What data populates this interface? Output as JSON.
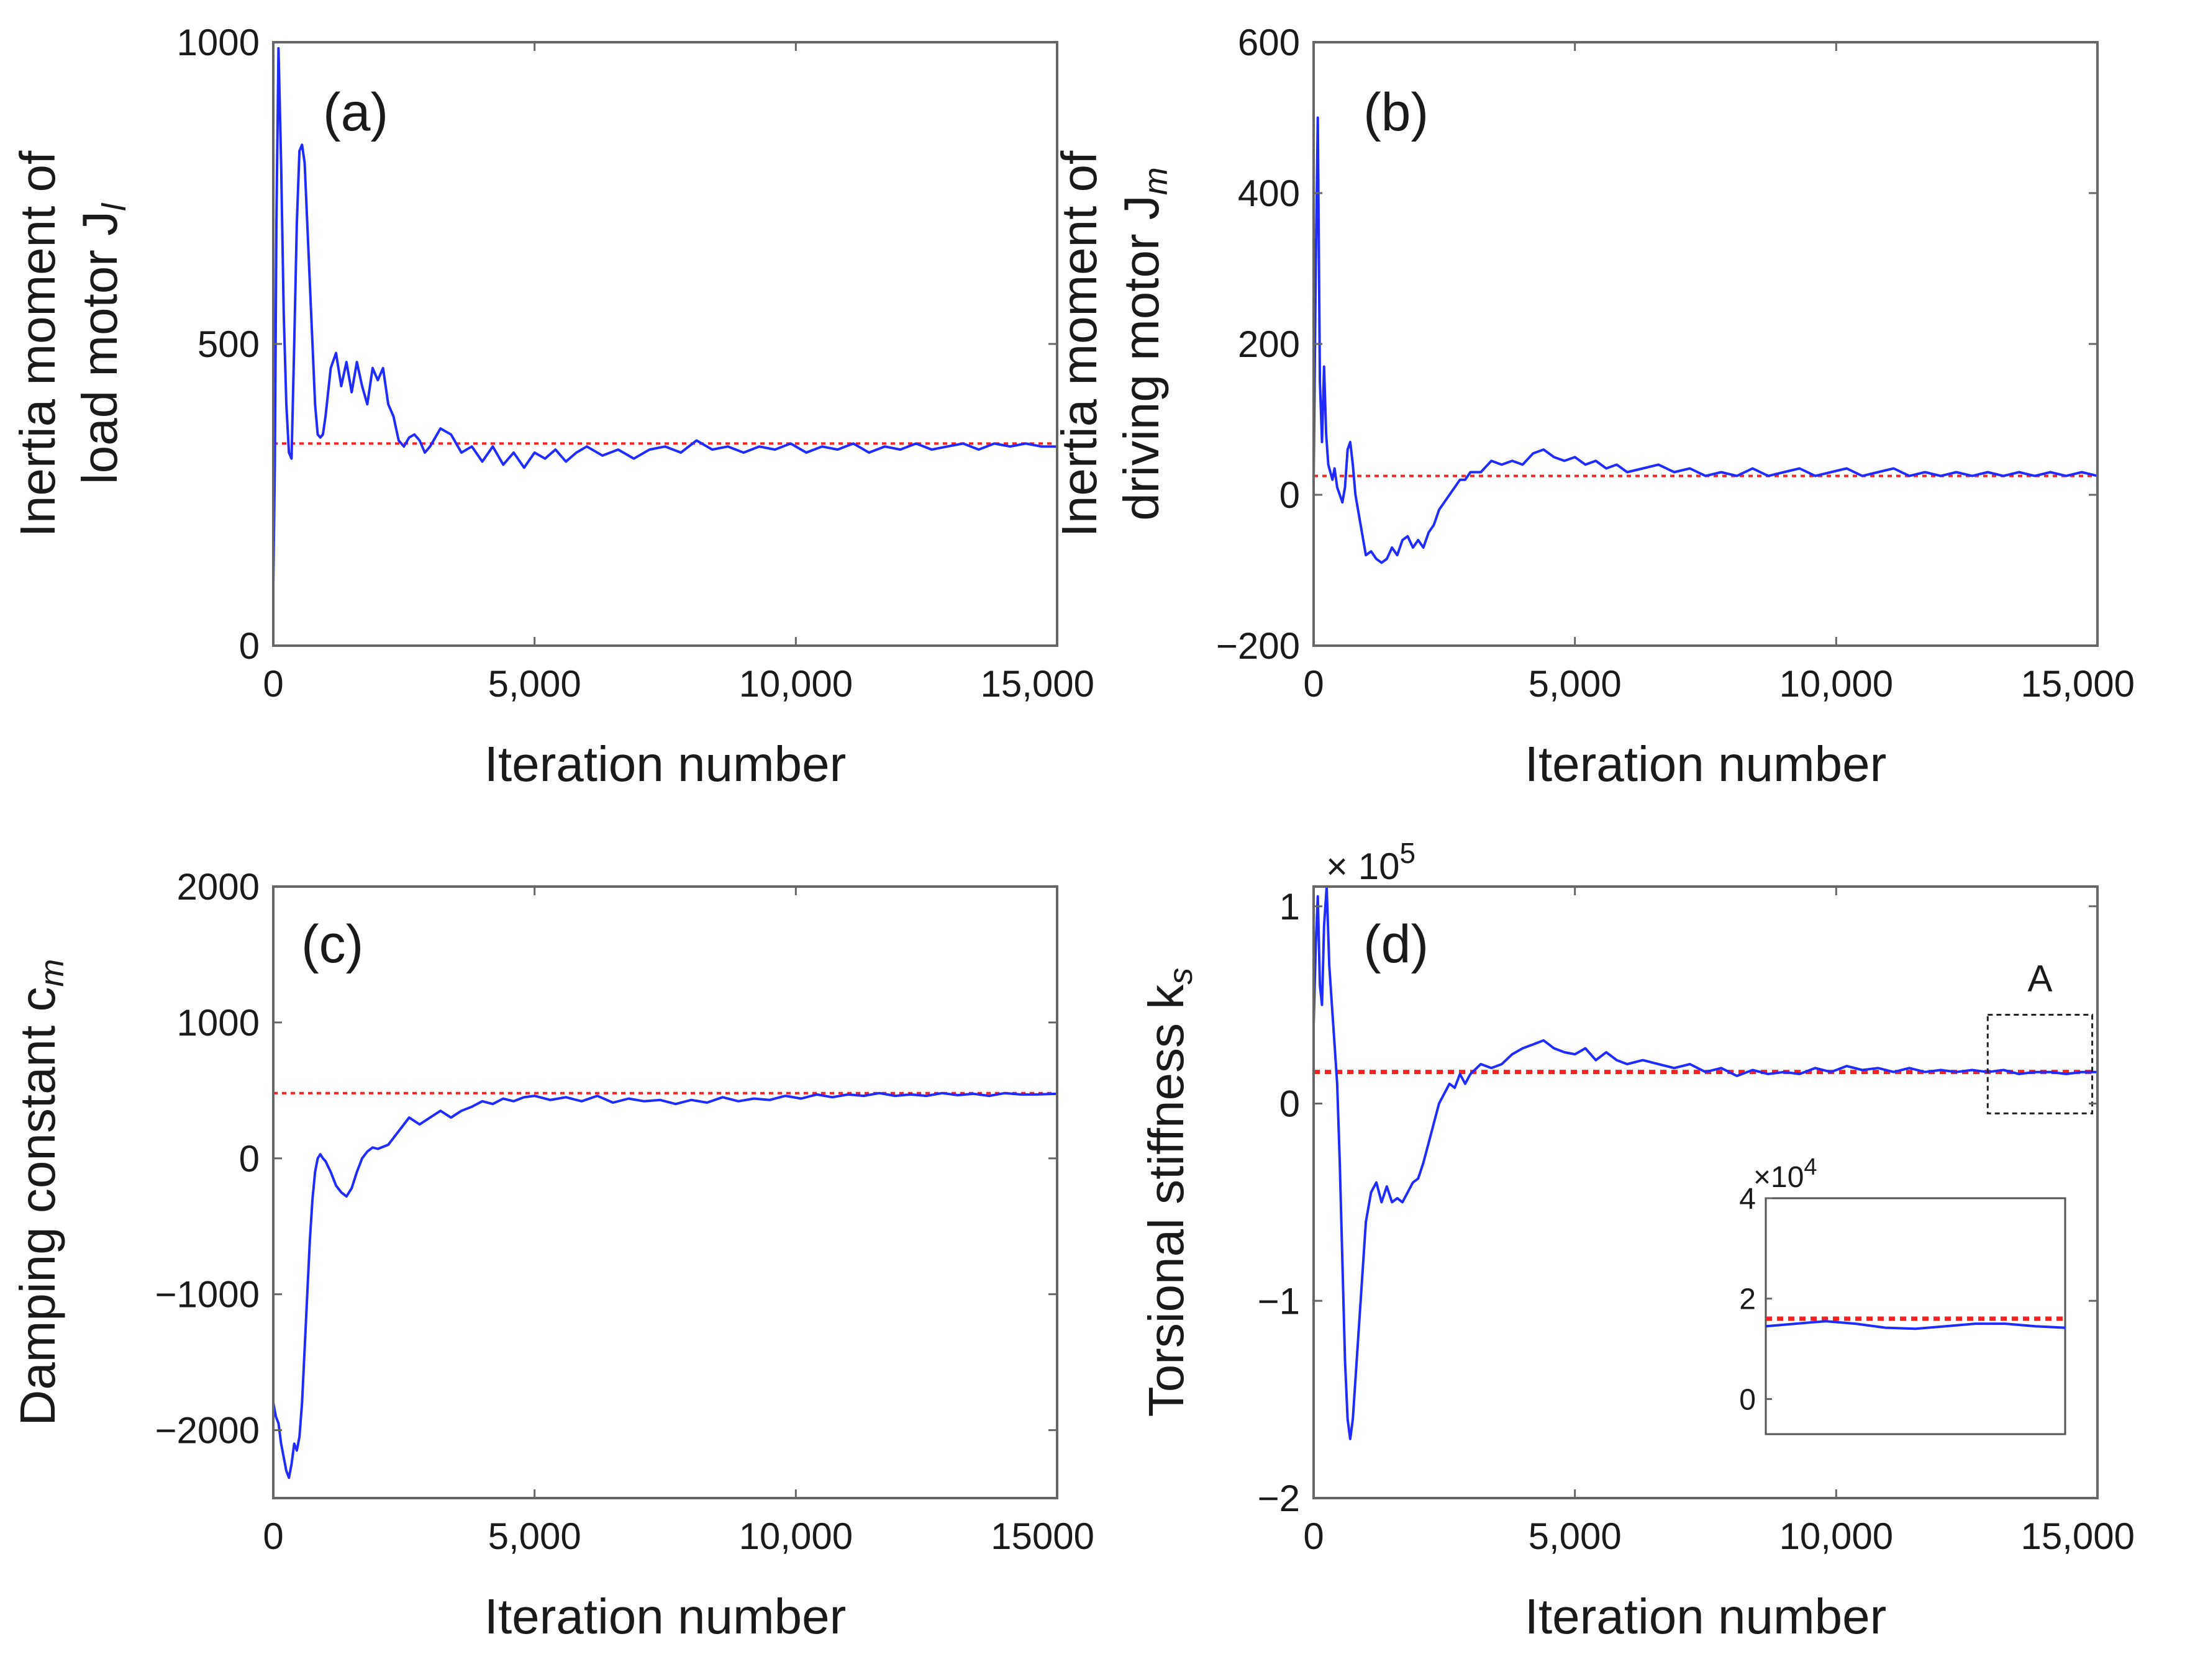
{
  "figure": {
    "colors": {
      "estimate": "#1f2bff",
      "reference": "#ff2020",
      "axes": "#666666"
    }
  },
  "chart_data": [
    {
      "type": "line",
      "panel_label": "(a)",
      "xlabel": "Iteration number",
      "ylabel_line1": "Inertia moment of",
      "ylabel_line2": "load motor J",
      "ylabel_sub": "l",
      "xlim": [
        0,
        15000
      ],
      "ylim": [
        0,
        1000
      ],
      "xticks": [
        0,
        5000,
        10000,
        15000
      ],
      "xtick_labels": [
        "0",
        "5,000",
        "10,000",
        "15,000"
      ],
      "yticks": [
        0,
        500,
        1000
      ],
      "ytick_labels": [
        "0",
        "500",
        "1000"
      ],
      "reference_value": 335,
      "series": [
        {
          "name": "estimate",
          "x": [
            0,
            30,
            60,
            100,
            150,
            200,
            250,
            300,
            350,
            400,
            450,
            500,
            550,
            600,
            650,
            700,
            750,
            800,
            850,
            900,
            950,
            1000,
            1100,
            1200,
            1300,
            1400,
            1500,
            1600,
            1700,
            1800,
            1900,
            2000,
            2100,
            2200,
            2300,
            2400,
            2500,
            2600,
            2700,
            2800,
            2900,
            3000,
            3200,
            3400,
            3600,
            3800,
            4000,
            4200,
            4400,
            4600,
            4800,
            5000,
            5200,
            5400,
            5600,
            5800,
            6000,
            6300,
            6600,
            6900,
            7200,
            7500,
            7800,
            8100,
            8400,
            8700,
            9000,
            9300,
            9600,
            9900,
            10200,
            10500,
            10800,
            11100,
            11400,
            11700,
            12000,
            12300,
            12600,
            12900,
            13200,
            13500,
            13800,
            14100,
            14400,
            14700,
            15000
          ],
          "values": [
            100,
            300,
            700,
            990,
            800,
            550,
            400,
            320,
            310,
            500,
            700,
            820,
            830,
            800,
            700,
            600,
            500,
            400,
            350,
            345,
            350,
            380,
            460,
            485,
            430,
            470,
            420,
            470,
            430,
            400,
            460,
            440,
            460,
            400,
            380,
            340,
            330,
            345,
            350,
            340,
            320,
            330,
            360,
            350,
            320,
            330,
            305,
            330,
            300,
            320,
            295,
            320,
            310,
            325,
            305,
            320,
            330,
            315,
            325,
            310,
            325,
            330,
            320,
            340,
            325,
            330,
            320,
            330,
            325,
            335,
            320,
            330,
            325,
            335,
            320,
            330,
            325,
            335,
            325,
            330,
            335,
            325,
            335,
            330,
            335,
            330,
            330
          ]
        }
      ]
    },
    {
      "type": "line",
      "panel_label": "(b)",
      "xlabel": "Iteration number",
      "ylabel_line1": "Inertia moment of",
      "ylabel_line2": "driving motor J",
      "ylabel_sub": "m",
      "xlim": [
        0,
        15000
      ],
      "ylim": [
        -200,
        600
      ],
      "xticks": [
        0,
        5000,
        10000,
        15000
      ],
      "xtick_labels": [
        "0",
        "5,000",
        "10,000",
        "15,000"
      ],
      "yticks": [
        -200,
        0,
        200,
        400,
        600
      ],
      "ytick_labels": [
        "−200",
        "0",
        "200",
        "400",
        "600"
      ],
      "reference_value": 25,
      "series": [
        {
          "name": "estimate",
          "x": [
            0,
            40,
            80,
            120,
            160,
            200,
            240,
            280,
            320,
            360,
            400,
            450,
            500,
            550,
            600,
            650,
            700,
            750,
            800,
            850,
            900,
            1000,
            1100,
            1200,
            1300,
            1400,
            1500,
            1600,
            1700,
            1800,
            1900,
            2000,
            2100,
            2200,
            2300,
            2400,
            2500,
            2600,
            2700,
            2800,
            2900,
            3000,
            3200,
            3400,
            3600,
            3800,
            4000,
            4200,
            4400,
            4600,
            4800,
            5000,
            5200,
            5400,
            5600,
            5800,
            6000,
            6300,
            6600,
            6900,
            7200,
            7500,
            7800,
            8100,
            8400,
            8700,
            9000,
            9300,
            9600,
            9900,
            10200,
            10500,
            10800,
            11100,
            11400,
            11700,
            12000,
            12300,
            12600,
            12900,
            13200,
            13500,
            13800,
            14100,
            14400,
            14700,
            15000
          ],
          "values": [
            20,
            300,
            500,
            150,
            70,
            170,
            80,
            40,
            30,
            20,
            35,
            10,
            0,
            -10,
            10,
            60,
            70,
            40,
            0,
            -20,
            -40,
            -80,
            -75,
            -85,
            -90,
            -85,
            -70,
            -80,
            -60,
            -55,
            -70,
            -60,
            -70,
            -50,
            -40,
            -20,
            -10,
            0,
            10,
            20,
            20,
            30,
            30,
            45,
            40,
            45,
            40,
            55,
            60,
            50,
            45,
            50,
            40,
            45,
            35,
            40,
            30,
            35,
            40,
            30,
            35,
            25,
            30,
            25,
            35,
            25,
            30,
            35,
            25,
            30,
            35,
            25,
            30,
            35,
            25,
            30,
            25,
            30,
            25,
            30,
            25,
            30,
            25,
            30,
            25,
            30,
            25
          ]
        }
      ]
    },
    {
      "type": "line",
      "panel_label": "(c)",
      "xlabel": "Iteration number",
      "ylabel_line1": "Damping constant c",
      "ylabel_line2": "",
      "ylabel_sub": "m",
      "xlim": [
        0,
        15000
      ],
      "ylim": [
        -2500,
        2000
      ],
      "xticks": [
        0,
        5000,
        10000,
        15000
      ],
      "xtick_labels": [
        "0",
        "5,000",
        "10,000",
        "15000"
      ],
      "yticks": [
        -2000,
        -1000,
        0,
        1000,
        2000
      ],
      "ytick_labels": [
        "−2000",
        "−1000",
        "0",
        "1000",
        "2000"
      ],
      "reference_value": 480,
      "series": [
        {
          "name": "estimate",
          "x": [
            0,
            50,
            100,
            150,
            200,
            250,
            300,
            350,
            400,
            450,
            500,
            550,
            600,
            650,
            700,
            750,
            800,
            850,
            900,
            950,
            1000,
            1100,
            1200,
            1300,
            1400,
            1500,
            1600,
            1700,
            1800,
            1900,
            2000,
            2200,
            2400,
            2600,
            2800,
            3000,
            3200,
            3400,
            3600,
            3800,
            4000,
            4200,
            4400,
            4600,
            4800,
            5000,
            5300,
            5600,
            5900,
            6200,
            6500,
            6800,
            7100,
            7400,
            7700,
            8000,
            8300,
            8600,
            8900,
            9200,
            9500,
            9800,
            10100,
            10400,
            10700,
            11000,
            11300,
            11600,
            11900,
            12200,
            12500,
            12800,
            13100,
            13400,
            13700,
            14000,
            14300,
            14600,
            15000
          ],
          "values": [
            -1800,
            -1900,
            -1950,
            -2100,
            -2200,
            -2300,
            -2350,
            -2250,
            -2100,
            -2150,
            -2050,
            -1800,
            -1400,
            -1000,
            -600,
            -300,
            -100,
            0,
            30,
            0,
            -20,
            -100,
            -200,
            -250,
            -280,
            -220,
            -100,
            0,
            50,
            80,
            70,
            100,
            200,
            300,
            250,
            300,
            350,
            300,
            350,
            380,
            420,
            400,
            440,
            420,
            450,
            460,
            430,
            450,
            420,
            460,
            410,
            440,
            420,
            430,
            400,
            430,
            410,
            450,
            420,
            440,
            430,
            460,
            440,
            470,
            450,
            470,
            460,
            480,
            460,
            470,
            460,
            480,
            465,
            475,
            460,
            480,
            470,
            470,
            475
          ]
        }
      ]
    },
    {
      "type": "line",
      "panel_label": "(d)",
      "xlabel": "Iteration number",
      "ylabel_line1": "Torsional stiffness k",
      "ylabel_line2": "",
      "ylabel_sub": "s",
      "multiplier": "× 10",
      "multiplier_exp": "5",
      "xlim": [
        0,
        15000
      ],
      "ylim": [
        -2,
        1.1
      ],
      "xticks": [
        0,
        5000,
        10000,
        15000
      ],
      "xtick_labels": [
        "0",
        "5,000",
        "10,000",
        "15,000"
      ],
      "yticks": [
        -2,
        -1,
        0,
        1
      ],
      "ytick_labels": [
        "−2",
        "−1",
        "0",
        "1"
      ],
      "reference_value": 0.16,
      "zoom_box_label": "A",
      "zoom_box": {
        "x": [
          12900,
          14900
        ],
        "y": [
          -0.05,
          0.45
        ]
      },
      "series": [
        {
          "name": "estimate",
          "x": [
            0,
            40,
            80,
            120,
            160,
            200,
            250,
            300,
            350,
            400,
            450,
            500,
            550,
            600,
            650,
            700,
            750,
            800,
            850,
            900,
            950,
            1000,
            1100,
            1200,
            1300,
            1400,
            1500,
            1600,
            1700,
            1800,
            1900,
            2000,
            2100,
            2200,
            2300,
            2400,
            2500,
            2600,
            2700,
            2800,
            2900,
            3000,
            3200,
            3400,
            3600,
            3800,
            4000,
            4200,
            4400,
            4600,
            4800,
            5000,
            5200,
            5400,
            5600,
            5800,
            6000,
            6300,
            6600,
            6900,
            7200,
            7500,
            7800,
            8100,
            8400,
            8700,
            9000,
            9300,
            9600,
            9900,
            10200,
            10500,
            10800,
            11100,
            11400,
            11700,
            12000,
            12300,
            12600,
            12900,
            13200,
            13500,
            13800,
            14100,
            14400,
            14700,
            15000
          ],
          "values": [
            0.4,
            0.8,
            1.05,
            0.6,
            0.5,
            0.9,
            1.1,
            0.7,
            0.5,
            0.3,
            0.1,
            -0.3,
            -0.8,
            -1.3,
            -1.6,
            -1.7,
            -1.6,
            -1.4,
            -1.2,
            -1.0,
            -0.8,
            -0.6,
            -0.45,
            -0.4,
            -0.5,
            -0.42,
            -0.5,
            -0.48,
            -0.5,
            -0.45,
            -0.4,
            -0.38,
            -0.3,
            -0.2,
            -0.1,
            0.0,
            0.05,
            0.1,
            0.08,
            0.15,
            0.1,
            0.15,
            0.2,
            0.18,
            0.2,
            0.25,
            0.28,
            0.3,
            0.32,
            0.28,
            0.26,
            0.25,
            0.28,
            0.22,
            0.26,
            0.22,
            0.2,
            0.22,
            0.2,
            0.18,
            0.2,
            0.16,
            0.18,
            0.14,
            0.17,
            0.15,
            0.16,
            0.15,
            0.18,
            0.16,
            0.19,
            0.17,
            0.18,
            0.16,
            0.18,
            0.16,
            0.17,
            0.16,
            0.17,
            0.16,
            0.17,
            0.15,
            0.16,
            0.16,
            0.15,
            0.16,
            0.16
          ]
        }
      ],
      "inset": {
        "multiplier": "×10",
        "multiplier_exp": "4",
        "ylim": [
          -0.7,
          4
        ],
        "yticks": [
          0,
          2,
          4
        ],
        "ytick_labels": [
          "0",
          "2",
          "4"
        ],
        "reference_value": 1.6,
        "series": [
          {
            "name": "estimate",
            "t": [
              0,
              0.1,
              0.2,
              0.3,
              0.4,
              0.5,
              0.6,
              0.7,
              0.8,
              0.9,
              1
            ],
            "values": [
              1.45,
              1.5,
              1.55,
              1.5,
              1.42,
              1.4,
              1.45,
              1.5,
              1.5,
              1.45,
              1.42
            ]
          }
        ]
      }
    }
  ]
}
